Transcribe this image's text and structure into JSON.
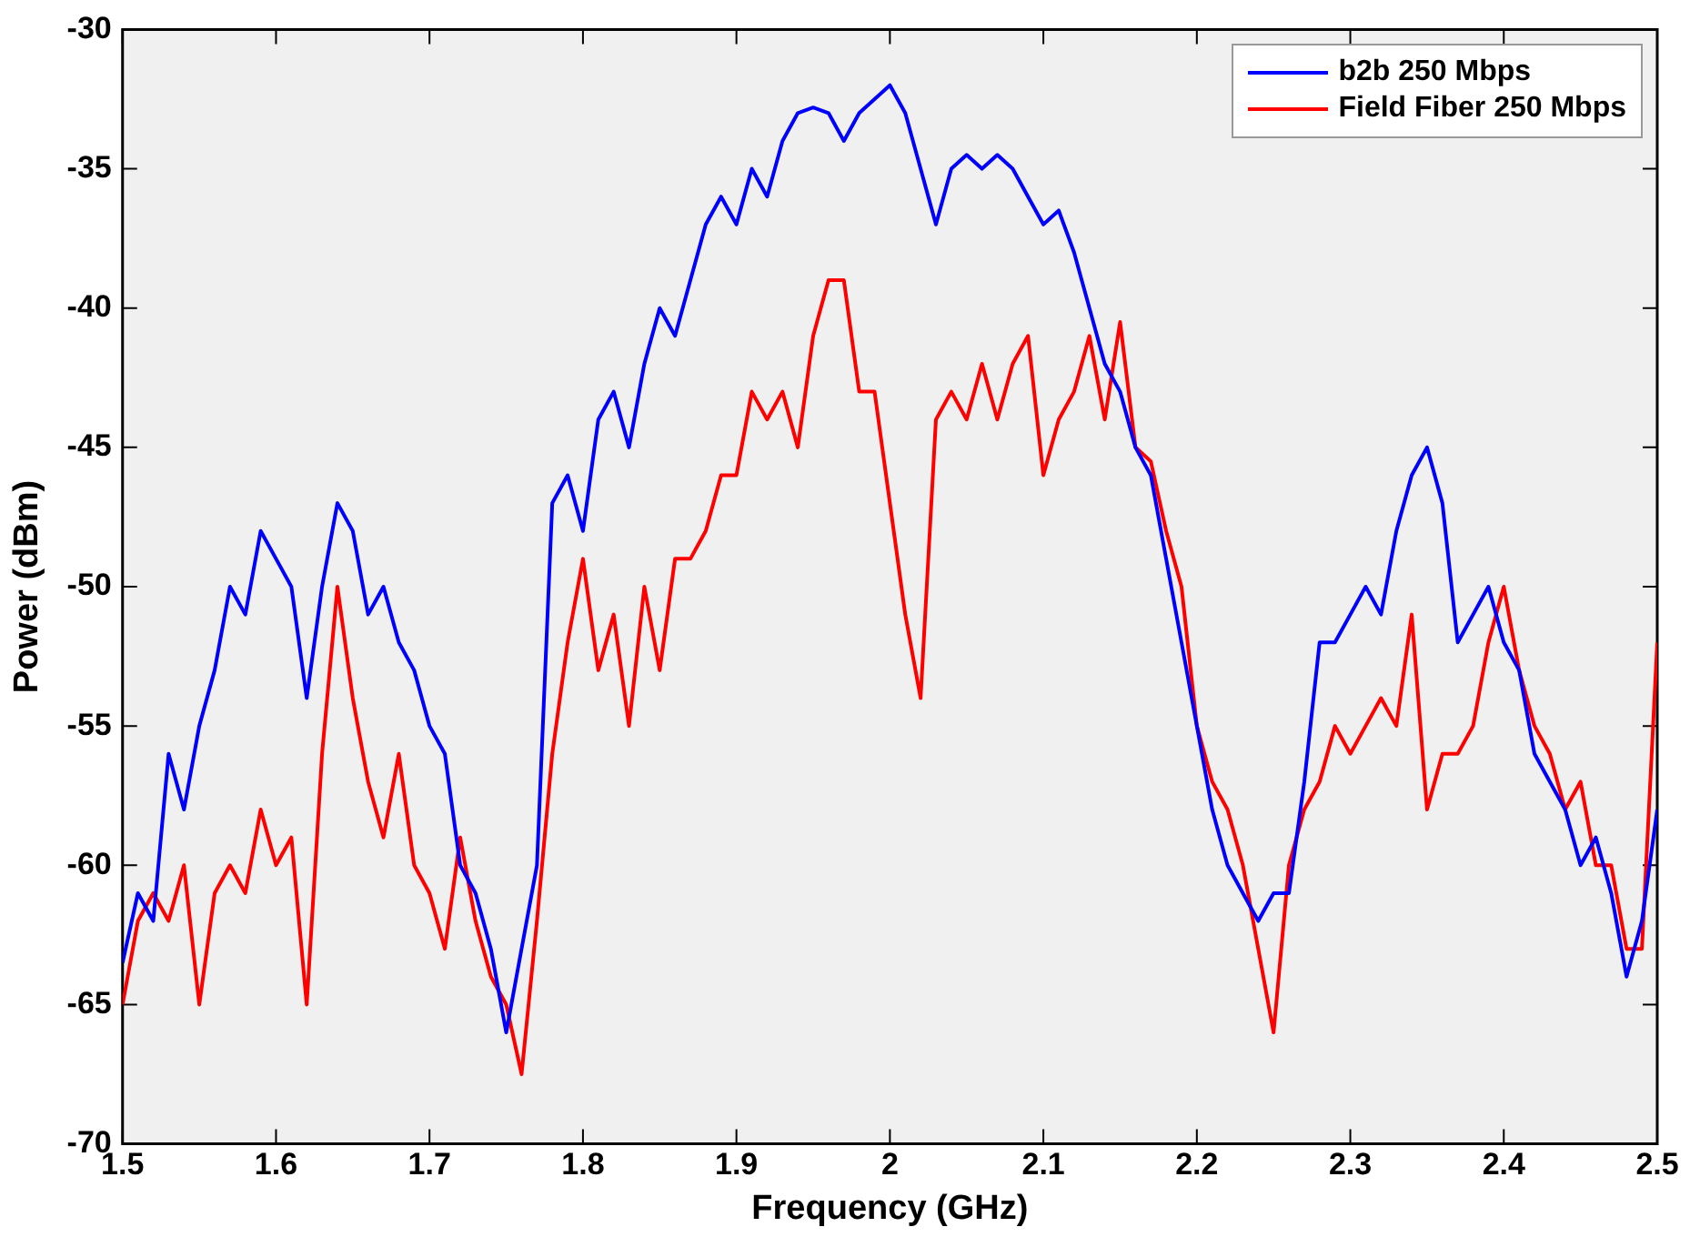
{
  "chart_data": {
    "type": "line",
    "xlabel": "Frequency (GHz)",
    "ylabel": "Power (dBm)",
    "x": [
      1.5,
      1.51,
      1.52,
      1.53,
      1.54,
      1.55,
      1.56,
      1.57,
      1.58,
      1.59,
      1.6,
      1.61,
      1.62,
      1.63,
      1.64,
      1.65,
      1.66,
      1.67,
      1.68,
      1.69,
      1.7,
      1.71,
      1.72,
      1.73,
      1.74,
      1.75,
      1.76,
      1.77,
      1.78,
      1.79,
      1.8,
      1.81,
      1.82,
      1.83,
      1.84,
      1.85,
      1.86,
      1.87,
      1.88,
      1.89,
      1.9,
      1.91,
      1.92,
      1.93,
      1.94,
      1.95,
      1.96,
      1.97,
      1.98,
      1.99,
      2.0,
      2.01,
      2.02,
      2.03,
      2.04,
      2.05,
      2.06,
      2.07,
      2.08,
      2.09,
      2.1,
      2.11,
      2.12,
      2.13,
      2.14,
      2.15,
      2.16,
      2.17,
      2.18,
      2.19,
      2.2,
      2.21,
      2.22,
      2.23,
      2.24,
      2.25,
      2.26,
      2.27,
      2.28,
      2.29,
      2.3,
      2.31,
      2.32,
      2.33,
      2.34,
      2.35,
      2.36,
      2.37,
      2.38,
      2.39,
      2.4,
      2.41,
      2.42,
      2.43,
      2.44,
      2.45,
      2.46,
      2.47,
      2.48,
      2.49,
      2.5
    ],
    "series": [
      {
        "name": "b2b 250 Mbps",
        "color": "#0000ff",
        "values": [
          -63.5,
          -61,
          -62,
          -56,
          -58,
          -55,
          -53,
          -50,
          -51,
          -48,
          -49,
          -50,
          -54,
          -50,
          -47,
          -48,
          -51,
          -50,
          -52,
          -53,
          -55,
          -56,
          -60,
          -61,
          -63,
          -66,
          -63,
          -60,
          -47,
          -46,
          -48,
          -44,
          -43,
          -45,
          -42,
          -40,
          -41,
          -39,
          -37,
          -36,
          -37,
          -35,
          -36,
          -34,
          -33,
          -32.8,
          -33,
          -34,
          -33,
          -32.5,
          -32,
          -33,
          -35,
          -37,
          -35,
          -34.5,
          -35,
          -34.5,
          -35,
          -36,
          -37,
          -36.5,
          -38,
          -40,
          -42,
          -43,
          -45,
          -46,
          -49,
          -52,
          -55,
          -58,
          -60,
          -61,
          -62,
          -61,
          -61,
          -57,
          -52,
          -52,
          -51,
          -50,
          -51,
          -48,
          -46,
          -45,
          -47,
          -52,
          -51,
          -50,
          -52,
          -53,
          -56,
          -57,
          -58,
          -60,
          -59,
          -61,
          -64,
          -62,
          -58
        ]
      },
      {
        "name": "Field Fiber 250 Mbps",
        "color": "#ff0000",
        "values": [
          -65,
          -62,
          -61,
          -62,
          -60,
          -65,
          -61,
          -60,
          -61,
          -58,
          -60,
          -59,
          -65,
          -56,
          -50,
          -54,
          -57,
          -59,
          -56,
          -60,
          -61,
          -63,
          -59,
          -62,
          -64,
          -65,
          -67.5,
          -62,
          -56,
          -52,
          -49,
          -53,
          -51,
          -55,
          -50,
          -53,
          -49,
          -49,
          -48,
          -46,
          -46,
          -43,
          -44,
          -43,
          -45,
          -41,
          -39,
          -39,
          -43,
          -43,
          -47,
          -51,
          -54,
          -44,
          -43,
          -44,
          -42,
          -44,
          -42,
          -41,
          -46,
          -44,
          -43,
          -41,
          -44,
          -40.5,
          -45,
          -45.5,
          -48,
          -50,
          -55,
          -57,
          -58,
          -60,
          -63,
          -66,
          -60,
          -58,
          -57,
          -55,
          -56,
          -55,
          -54,
          -55,
          -51,
          -58,
          -56,
          -56,
          -55,
          -52,
          -50,
          -53,
          -55,
          -56,
          -58,
          -57,
          -60,
          -60,
          -63,
          -63,
          -52
        ]
      }
    ],
    "xlim": [
      1.5,
      2.5
    ],
    "xticks": [
      1.5,
      1.6,
      1.7,
      1.8,
      1.9,
      2,
      2.1,
      2.2,
      2.3,
      2.4,
      2.5
    ],
    "ylim": [
      -70,
      -30
    ],
    "yticks": [
      -70,
      -65,
      -60,
      -55,
      -50,
      -45,
      -40,
      -35,
      -30
    ],
    "legend": "top right",
    "grid": false,
    "marker": "none",
    "line_style": "solid"
  }
}
